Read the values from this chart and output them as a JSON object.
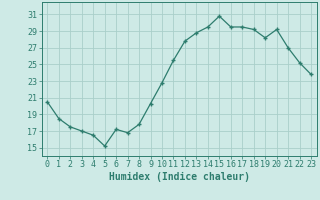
{
  "x": [
    0,
    1,
    2,
    3,
    4,
    5,
    6,
    7,
    8,
    9,
    10,
    11,
    12,
    13,
    14,
    15,
    16,
    17,
    18,
    19,
    20,
    21,
    22,
    23
  ],
  "y": [
    20.5,
    18.5,
    17.5,
    17.0,
    16.5,
    15.2,
    17.2,
    16.8,
    17.8,
    20.3,
    22.8,
    25.5,
    27.8,
    28.8,
    29.5,
    30.8,
    29.5,
    29.5,
    29.2,
    28.2,
    29.2,
    27.0,
    25.2,
    23.8
  ],
  "line_color": "#2e7d6e",
  "marker_color": "#2e7d6e",
  "bg_color": "#ceeae6",
  "grid_color": "#aacfca",
  "tick_color": "#2e7d6e",
  "xlabel": "Humidex (Indice chaleur)",
  "ylabel_ticks": [
    15,
    17,
    19,
    21,
    23,
    25,
    27,
    29,
    31
  ],
  "ylim": [
    14.0,
    32.5
  ],
  "xlim": [
    -0.5,
    23.5
  ],
  "axis_fontsize": 7,
  "tick_fontsize": 6,
  "xlabel_fontsize": 7
}
